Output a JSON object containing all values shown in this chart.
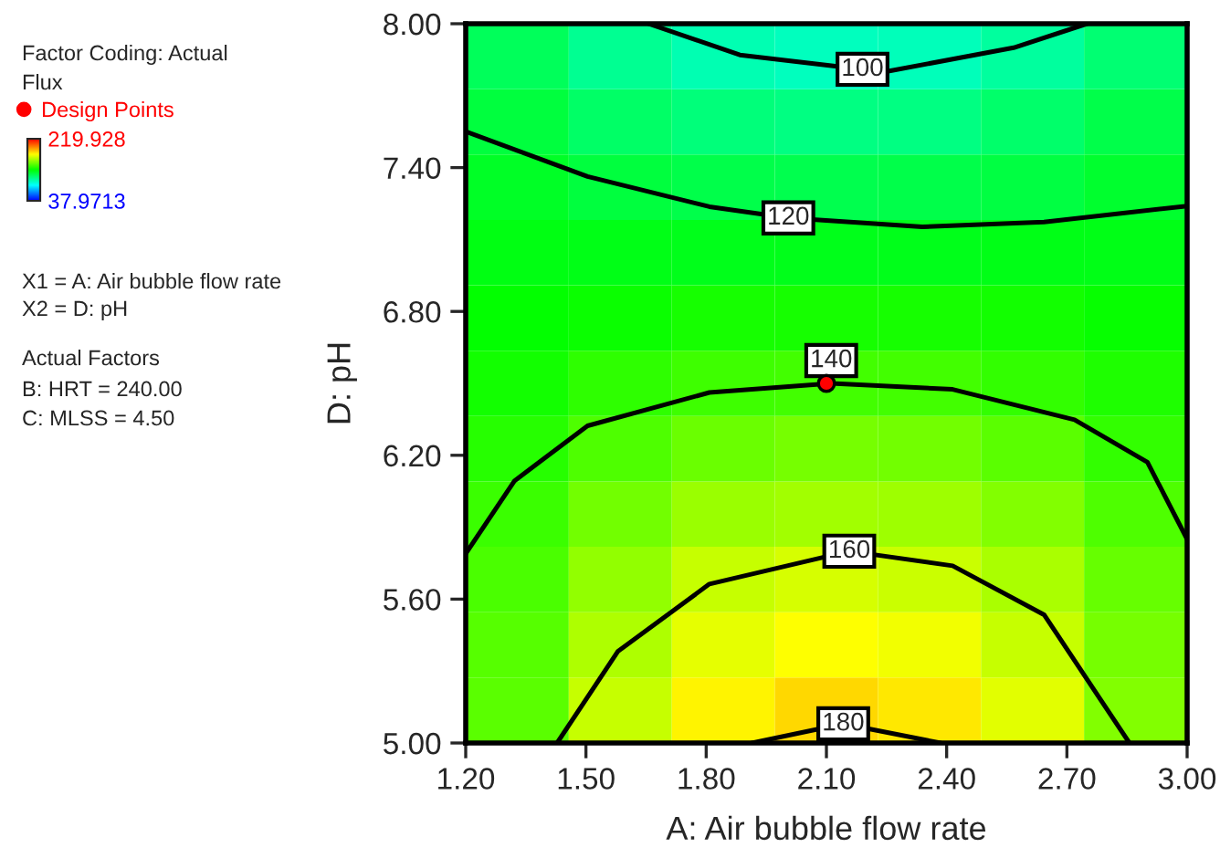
{
  "chart_data": {
    "type": "heatmap",
    "xlabel": "A: Air bubble flow rate",
    "ylabel": "D: pH",
    "clabel": "Flux",
    "xlim": [
      1.2,
      3.0
    ],
    "ylim": [
      5.0,
      8.0
    ],
    "xticks": [
      {
        "value": 1.2,
        "label": "1.20"
      },
      {
        "value": 1.5,
        "label": "1.50"
      },
      {
        "value": 1.8,
        "label": "1.80"
      },
      {
        "value": 2.1,
        "label": "2.10"
      },
      {
        "value": 2.4,
        "label": "2.40"
      },
      {
        "value": 2.7,
        "label": "2.70"
      },
      {
        "value": 3.0,
        "label": "3.00"
      }
    ],
    "yticks": [
      {
        "value": 5.0,
        "label": "5.00"
      },
      {
        "value": 5.6,
        "label": "5.60"
      },
      {
        "value": 6.2,
        "label": "6.20"
      },
      {
        "value": 6.8,
        "label": "6.80"
      },
      {
        "value": 7.4,
        "label": "7.40"
      },
      {
        "value": 8.0,
        "label": "8.00"
      }
    ],
    "clim": [
      37.9713,
      219.928
    ],
    "cticks": [
      {
        "value": 219.928,
        "label": "219.928"
      },
      {
        "value": 37.9713,
        "label": "37.9713"
      }
    ],
    "colors": [
      "#0000ff",
      "#00ffff",
      "#00ff00",
      "#ffff00",
      "#ff0000"
    ],
    "cells": [
      [
        113,
        103,
        97,
        95,
        96,
        101,
        109
      ],
      [
        118,
        111,
        107,
        106,
        106,
        110,
        116
      ],
      [
        122,
        118,
        116,
        115,
        116,
        117,
        121
      ],
      [
        126,
        125,
        124,
        124,
        124,
        125,
        125
      ],
      [
        129,
        131,
        133,
        133,
        133,
        132,
        130
      ],
      [
        132,
        137,
        140,
        141,
        141,
        138,
        134
      ],
      [
        136,
        143,
        148,
        150,
        149,
        145,
        138
      ],
      [
        139,
        149,
        156,
        158,
        157,
        152,
        143
      ],
      [
        142,
        155,
        164,
        167,
        165,
        159,
        147
      ],
      [
        144,
        160,
        170,
        174,
        172,
        164,
        150
      ],
      [
        145,
        164,
        176,
        181,
        178,
        169,
        152
      ]
    ],
    "series": [
      {
        "name": "Design Points",
        "type": "scatter",
        "color": "#ff0000",
        "x": [
          2.1
        ],
        "values": [
          6.5
        ]
      },
      {
        "type": "line",
        "color": "#000000",
        "x": [
          1.656,
          1.884,
          2.19,
          2.248,
          2.567,
          2.75
        ],
        "values": [
          8.0,
          7.87,
          7.81,
          7.8,
          7.9,
          8.0
        ]
      },
      {
        "type": "line",
        "color": "#000000",
        "x": [
          1.2,
          1.504,
          1.808,
          2.005,
          2.339,
          2.643,
          3.0
        ],
        "values": [
          7.55,
          7.363,
          7.237,
          7.19,
          7.153,
          7.173,
          7.24
        ]
      },
      {
        "type": "line",
        "color": "#000000",
        "x": [
          1.2,
          1.322,
          1.504,
          1.808,
          2.112,
          2.415,
          2.719,
          2.901,
          3.0
        ],
        "values": [
          5.79,
          6.094,
          6.323,
          6.462,
          6.5,
          6.475,
          6.348,
          6.171,
          5.85
        ]
      },
      {
        "type": "line",
        "color": "#000000",
        "x": [
          1.428,
          1.58,
          1.808,
          2.157,
          2.415,
          2.643,
          2.856
        ],
        "values": [
          5.0,
          5.383,
          5.663,
          5.8,
          5.739,
          5.535,
          5.0
        ]
      },
      {
        "type": "line",
        "color": "#000000",
        "x": [
          1.914,
          2.142,
          2.385
        ],
        "values": [
          5.0,
          5.08,
          5.0
        ]
      }
    ],
    "legend": "left",
    "annotations": [
      "Factor Coding: Actual",
      {
        "text": "100",
        "x": 2.19,
        "y": 7.81
      },
      {
        "text": "120",
        "x": 2.005,
        "y": 7.19
      },
      {
        "text": "140",
        "x": 2.112,
        "y": 6.5
      },
      {
        "text": "160",
        "x": 2.157,
        "y": 5.8
      },
      {
        "text": "180",
        "x": 2.142,
        "y": 5.08
      },
      "X1 = A: Air bubble flow rate",
      "X2 = D: pH",
      "Actual Factors",
      "B: HRT = 240.00",
      "C: MLSS = 4.50"
    ]
  }
}
